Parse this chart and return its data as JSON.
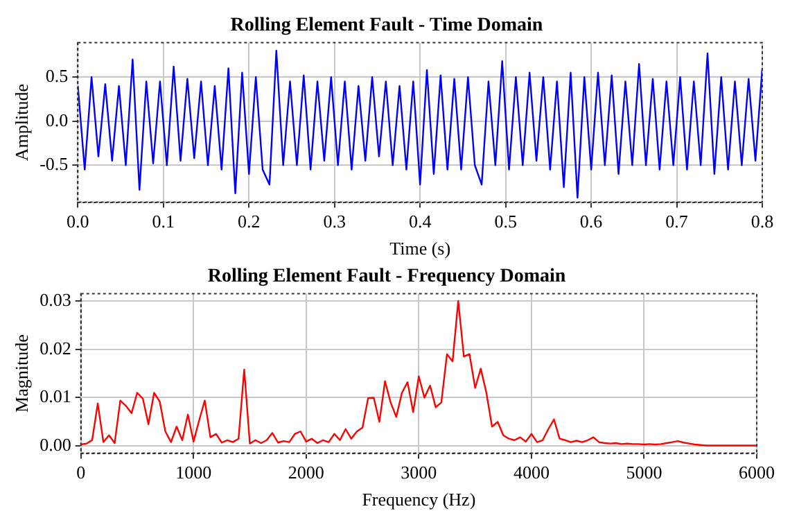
{
  "chart_data": [
    {
      "type": "line",
      "title": "Rolling Element Fault - Time Domain",
      "xlabel": "Time (s)",
      "ylabel": "Amplitude",
      "xlim": [
        0,
        0.8
      ],
      "ylim": [
        -0.92,
        0.89
      ],
      "xticks": [
        {
          "value": 0,
          "label": "0.0"
        },
        {
          "value": 0.1,
          "label": "0.1"
        },
        {
          "value": 0.2,
          "label": "0.2"
        },
        {
          "value": 0.3,
          "label": "0.3"
        },
        {
          "value": 0.4,
          "label": "0.4"
        },
        {
          "value": 0.5,
          "label": "0.5"
        },
        {
          "value": 0.6,
          "label": "0.6"
        },
        {
          "value": 0.7,
          "label": "0.7"
        },
        {
          "value": 0.8,
          "label": "0.8"
        }
      ],
      "yticks": [
        {
          "value": -0.5,
          "label": "-0.5"
        },
        {
          "value": 0,
          "label": "0.0"
        },
        {
          "value": 0.5,
          "label": "0.5"
        }
      ],
      "grid": true,
      "marker": "none",
      "line_style": "solid",
      "series": [
        {
          "color": "#0000ff",
          "x": [
            0,
            0.008,
            0.016,
            0.024,
            0.032,
            0.04,
            0.048,
            0.056,
            0.064,
            0.072,
            0.08,
            0.088,
            0.096,
            0.104,
            0.112,
            0.12,
            0.128,
            0.136,
            0.144,
            0.152,
            0.16,
            0.168,
            0.176,
            0.184,
            0.192,
            0.2,
            0.208,
            0.216,
            0.224,
            0.232,
            0.24,
            0.248,
            0.256,
            0.264,
            0.272,
            0.28,
            0.288,
            0.296,
            0.304,
            0.312,
            0.32,
            0.328,
            0.336,
            0.344,
            0.352,
            0.36,
            0.368,
            0.376,
            0.384,
            0.392,
            0.4,
            0.408,
            0.416,
            0.424,
            0.432,
            0.44,
            0.448,
            0.456,
            0.464,
            0.472,
            0.48,
            0.488,
            0.496,
            0.504,
            0.512,
            0.52,
            0.528,
            0.536,
            0.544,
            0.552,
            0.56,
            0.568,
            0.576,
            0.584,
            0.592,
            0.6,
            0.608,
            0.616,
            0.624,
            0.632,
            0.64,
            0.648,
            0.656,
            0.664,
            0.672,
            0.68,
            0.688,
            0.696,
            0.704,
            0.712,
            0.72,
            0.728,
            0.736,
            0.744,
            0.752,
            0.76,
            0.768,
            0.776,
            0.784,
            0.792,
            0.8
          ],
          "values": [
            0.4,
            -0.55,
            0.5,
            -0.4,
            0.42,
            -0.45,
            0.4,
            -0.5,
            0.7,
            -0.78,
            0.45,
            -0.48,
            0.45,
            -0.5,
            0.62,
            -0.45,
            0.48,
            -0.42,
            0.45,
            -0.5,
            0.4,
            -0.55,
            0.6,
            -0.82,
            0.55,
            -0.6,
            0.5,
            -0.55,
            -0.72,
            0.8,
            -0.5,
            0.45,
            -0.5,
            0.52,
            -0.55,
            0.45,
            -0.45,
            0.5,
            -0.5,
            0.45,
            -0.55,
            0.4,
            -0.45,
            0.5,
            -0.4,
            0.45,
            -0.5,
            0.4,
            -0.55,
            0.45,
            -0.72,
            0.58,
            -0.6,
            0.52,
            -0.55,
            0.48,
            -0.55,
            0.5,
            -0.5,
            -0.72,
            0.45,
            -0.5,
            0.68,
            -0.55,
            0.5,
            -0.5,
            0.55,
            -0.45,
            0.5,
            -0.55,
            0.45,
            -0.75,
            0.55,
            -0.87,
            0.5,
            -0.55,
            0.55,
            -0.5,
            0.52,
            -0.6,
            0.45,
            -0.5,
            0.65,
            -0.5,
            0.48,
            -0.55,
            0.45,
            -0.5,
            0.5,
            -0.55,
            0.45,
            -0.5,
            0.77,
            -0.6,
            0.5,
            -0.55,
            0.45,
            -0.5,
            0.48,
            -0.45,
            0.6
          ]
        }
      ]
    },
    {
      "type": "line",
      "title": "Rolling Element Fault - Frequency Domain",
      "xlabel": "Frequency (Hz)",
      "ylabel": "Magnitude",
      "xlim": [
        0,
        6000
      ],
      "ylim": [
        -0.0015,
        0.0315
      ],
      "xticks": [
        0,
        1000,
        2000,
        3000,
        4000,
        5000,
        6000
      ],
      "yticks": [
        {
          "value": 0,
          "label": "0.00"
        },
        {
          "value": 0.01,
          "label": "0.01"
        },
        {
          "value": 0.02,
          "label": "0.02"
        },
        {
          "value": 0.03,
          "label": "0.03"
        }
      ],
      "grid": true,
      "marker": "none",
      "line_style": "solid",
      "series": [
        {
          "color": "#ff0000",
          "x": [
            0,
            50,
            100,
            150,
            200,
            250,
            300,
            350,
            400,
            450,
            500,
            550,
            600,
            650,
            700,
            750,
            800,
            850,
            900,
            950,
            1000,
            1050,
            1100,
            1150,
            1200,
            1250,
            1300,
            1350,
            1400,
            1450,
            1500,
            1550,
            1600,
            1650,
            1700,
            1750,
            1800,
            1850,
            1900,
            1950,
            2000,
            2050,
            2100,
            2150,
            2200,
            2250,
            2300,
            2350,
            2400,
            2450,
            2500,
            2550,
            2600,
            2650,
            2700,
            2750,
            2800,
            2850,
            2900,
            2950,
            3000,
            3050,
            3100,
            3150,
            3200,
            3250,
            3300,
            3350,
            3400,
            3450,
            3500,
            3550,
            3600,
            3650,
            3700,
            3750,
            3800,
            3850,
            3900,
            3950,
            4000,
            4050,
            4100,
            4150,
            4200,
            4250,
            4300,
            4350,
            4400,
            4450,
            4500,
            4550,
            4600,
            4650,
            4700,
            4750,
            4800,
            4850,
            4900,
            4950,
            5000,
            5050,
            5100,
            5150,
            5200,
            5250,
            5300,
            5350,
            5400,
            5450,
            5500,
            5550,
            5600,
            5650,
            5700,
            5750,
            5800,
            5850,
            5900,
            5950,
            6000
          ],
          "values": [
            0.0003,
            0.0005,
            0.0012,
            0.0088,
            0.0008,
            0.0022,
            0.0006,
            0.0094,
            0.0083,
            0.0068,
            0.011,
            0.0098,
            0.0045,
            0.011,
            0.0092,
            0.003,
            0.0008,
            0.004,
            0.0012,
            0.0065,
            0.0009,
            0.0053,
            0.0094,
            0.0018,
            0.0025,
            0.0007,
            0.0012,
            0.0008,
            0.0015,
            0.0158,
            0.0005,
            0.0012,
            0.0006,
            0.0012,
            0.0027,
            0.0007,
            0.001,
            0.0008,
            0.0025,
            0.003,
            0.0009,
            0.0015,
            0.0006,
            0.0012,
            0.0008,
            0.0025,
            0.0012,
            0.0035,
            0.0015,
            0.003,
            0.0038,
            0.0099,
            0.01,
            0.005,
            0.0134,
            0.009,
            0.006,
            0.011,
            0.0132,
            0.007,
            0.0144,
            0.01,
            0.0125,
            0.008,
            0.009,
            0.019,
            0.0175,
            0.03,
            0.0185,
            0.019,
            0.012,
            0.016,
            0.011,
            0.004,
            0.005,
            0.0022,
            0.0015,
            0.0012,
            0.0018,
            0.0009,
            0.0025,
            0.0008,
            0.0012,
            0.0035,
            0.0055,
            0.0015,
            0.0012,
            0.0008,
            0.0011,
            0.0008,
            0.0012,
            0.0018,
            0.0008,
            0.0006,
            0.0005,
            0.0006,
            0.0004,
            0.0005,
            0.0004,
            0.0004,
            0.0003,
            0.0004,
            0.0003,
            0.0004,
            0.0006,
            0.0008,
            0.001,
            0.0007,
            0.0005,
            0.0003,
            0.0002,
            0.0001,
            0.0001,
            0.0001,
            0.0001,
            0.0001,
            0.0001,
            0.0001,
            0.0001,
            0.0001,
            0.0001
          ]
        }
      ]
    }
  ]
}
